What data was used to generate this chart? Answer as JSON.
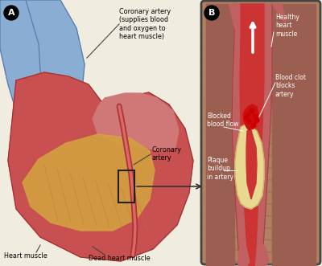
{
  "bg_color": "#f0ede0",
  "labels": {
    "coronary_artery_main": "Coronary artery\n(supplies blood\nand oxygen to\nheart muscle)",
    "coronary_artery": "Coronary\nartery",
    "heart_muscle": "Heart muscle",
    "dead_heart_muscle": "Dead heart muscle",
    "healthy_heart_muscle": "Healthy\nheart\nmuscle",
    "blood_clot": "Blood clot\nblocks\nartery",
    "blocked_flow": "Blocked\nblood flow",
    "plaque": "Plaque\nbuildup\nin artery"
  },
  "heart_color": "#c85050",
  "heart_dark": "#a03030",
  "dead_muscle_color": "#d4a040",
  "artery_color": "#c06060",
  "plaque_color": "#e8d890",
  "blood_clot_color": "#cc1010",
  "arrow_color": "#333333"
}
